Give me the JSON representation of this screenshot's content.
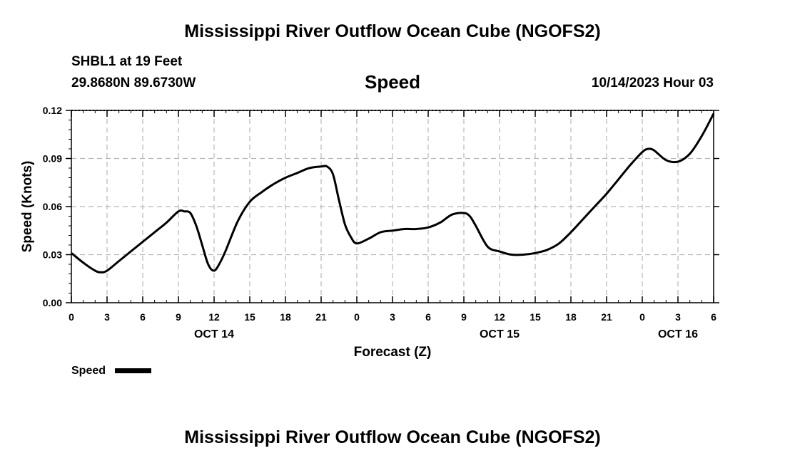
{
  "page": {
    "title_top": "Mississippi River Outflow Ocean Cube (NGOFS2)",
    "title_bottom": "Mississippi River Outflow Ocean Cube (NGOFS2)",
    "station": "SHBL1 at 19 Feet",
    "coords": "29.8680N  89.6730W",
    "datetime": "10/14/2023 Hour 03"
  },
  "chart_data": {
    "type": "line",
    "title": "Speed",
    "xlabel": "Forecast (Z)",
    "ylabel": "Speed (Knots)",
    "x_unit": "hours since OCT 14 00Z",
    "xlim": [
      0,
      54
    ],
    "ylim": [
      0,
      0.12
    ],
    "grid": true,
    "y_ticks": [
      {
        "value": 0,
        "label": "0.00"
      },
      {
        "value": 0.03,
        "label": "0.03"
      },
      {
        "value": 0.06,
        "label": "0.06"
      },
      {
        "value": 0.09,
        "label": "0.09"
      },
      {
        "value": 0.12,
        "label": "0.12"
      }
    ],
    "x_ticks": [
      {
        "value": 0,
        "label": "0"
      },
      {
        "value": 3,
        "label": "3"
      },
      {
        "value": 6,
        "label": "6"
      },
      {
        "value": 9,
        "label": "9"
      },
      {
        "value": 12,
        "label": "12"
      },
      {
        "value": 15,
        "label": "15"
      },
      {
        "value": 18,
        "label": "18"
      },
      {
        "value": 21,
        "label": "21"
      },
      {
        "value": 24,
        "label": "0"
      },
      {
        "value": 27,
        "label": "3"
      },
      {
        "value": 30,
        "label": "6"
      },
      {
        "value": 33,
        "label": "9"
      },
      {
        "value": 36,
        "label": "12"
      },
      {
        "value": 39,
        "label": "15"
      },
      {
        "value": 42,
        "label": "18"
      },
      {
        "value": 45,
        "label": "21"
      },
      {
        "value": 48,
        "label": "0"
      },
      {
        "value": 51,
        "label": "3"
      },
      {
        "value": 54,
        "label": "6"
      }
    ],
    "day_labels": [
      {
        "value": 12,
        "label": "OCT 14"
      },
      {
        "value": 36,
        "label": "OCT 15"
      },
      {
        "value": 51,
        "label": "OCT 16"
      }
    ],
    "legend": {
      "label": "Speed",
      "placement": "bottom-left"
    },
    "series": [
      {
        "name": "Speed",
        "color": "#000000",
        "x": [
          0,
          1,
          2,
          2.5,
          3,
          4,
          5,
          6,
          7,
          8,
          9,
          9.5,
          10,
          10.5,
          11,
          11.5,
          12,
          12.5,
          13,
          14,
          15,
          16,
          17,
          18,
          19,
          20,
          21,
          21.5,
          22,
          22.5,
          23,
          23.5,
          24,
          25,
          26,
          27,
          28,
          29,
          30,
          31,
          32,
          33,
          33.5,
          34,
          35,
          36,
          37,
          38,
          39,
          40,
          41,
          42,
          43,
          44,
          45,
          46,
          47,
          48,
          48.5,
          49,
          50,
          51,
          52,
          53,
          54
        ],
        "y": [
          0.031,
          0.025,
          0.02,
          0.019,
          0.02,
          0.026,
          0.032,
          0.038,
          0.044,
          0.05,
          0.057,
          0.057,
          0.056,
          0.048,
          0.036,
          0.024,
          0.02,
          0.025,
          0.033,
          0.051,
          0.063,
          0.069,
          0.074,
          0.078,
          0.081,
          0.084,
          0.085,
          0.085,
          0.08,
          0.064,
          0.049,
          0.041,
          0.037,
          0.04,
          0.044,
          0.045,
          0.046,
          0.046,
          0.047,
          0.05,
          0.055,
          0.056,
          0.054,
          0.048,
          0.035,
          0.032,
          0.03,
          0.03,
          0.031,
          0.033,
          0.037,
          0.044,
          0.052,
          0.06,
          0.068,
          0.077,
          0.086,
          0.094,
          0.096,
          0.095,
          0.089,
          0.088,
          0.093,
          0.104,
          0.118
        ]
      }
    ]
  }
}
